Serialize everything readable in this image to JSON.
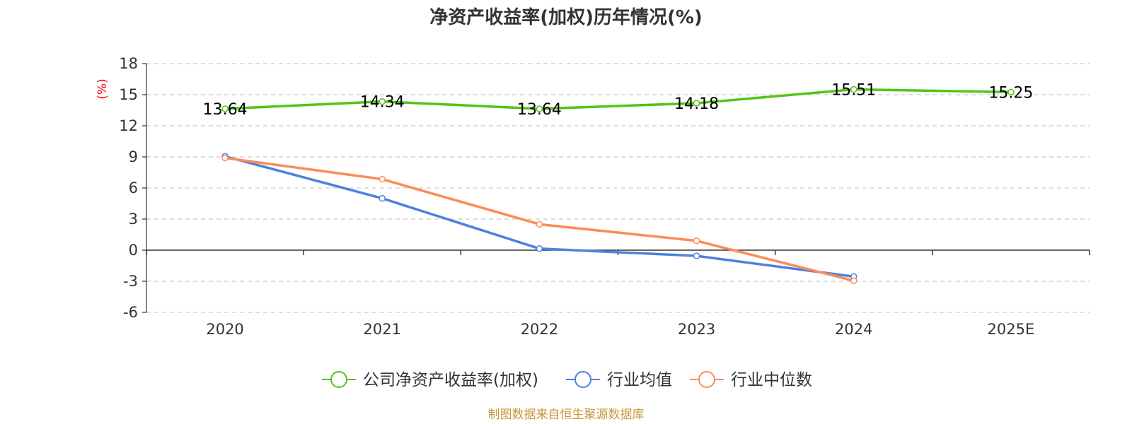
{
  "chart_data": {
    "type": "line",
    "title": "净资产收益率(加权)历年情况(%)",
    "ylabel": "(%)",
    "categories": [
      "2020",
      "2021",
      "2022",
      "2023",
      "2024",
      "2025E"
    ],
    "ylim": [
      -6,
      18
    ],
    "yticks": [
      18,
      15,
      12,
      9,
      6,
      3,
      0,
      -3,
      -6
    ],
    "grid": true,
    "legend_position": "bottom",
    "series": [
      {
        "name": "公司净资产收益率(加权)",
        "color": "#52c41a",
        "values": [
          13.64,
          14.34,
          13.64,
          14.18,
          15.51,
          15.25
        ],
        "labels": [
          "13.64",
          "14.34",
          "13.64",
          "14.18",
          "15.51",
          "15.25"
        ],
        "show_labels": true
      },
      {
        "name": "行业均值",
        "color": "#4e81dd",
        "values": [
          9.05,
          5.0,
          0.15,
          -0.55,
          -2.55,
          null
        ],
        "show_labels": false
      },
      {
        "name": "行业中位数",
        "color": "#fa8c5a",
        "values": [
          8.9,
          6.85,
          2.5,
          0.9,
          -2.95,
          null
        ],
        "show_labels": false
      }
    ],
    "source": "制图数据来自恒生聚源数据库"
  }
}
